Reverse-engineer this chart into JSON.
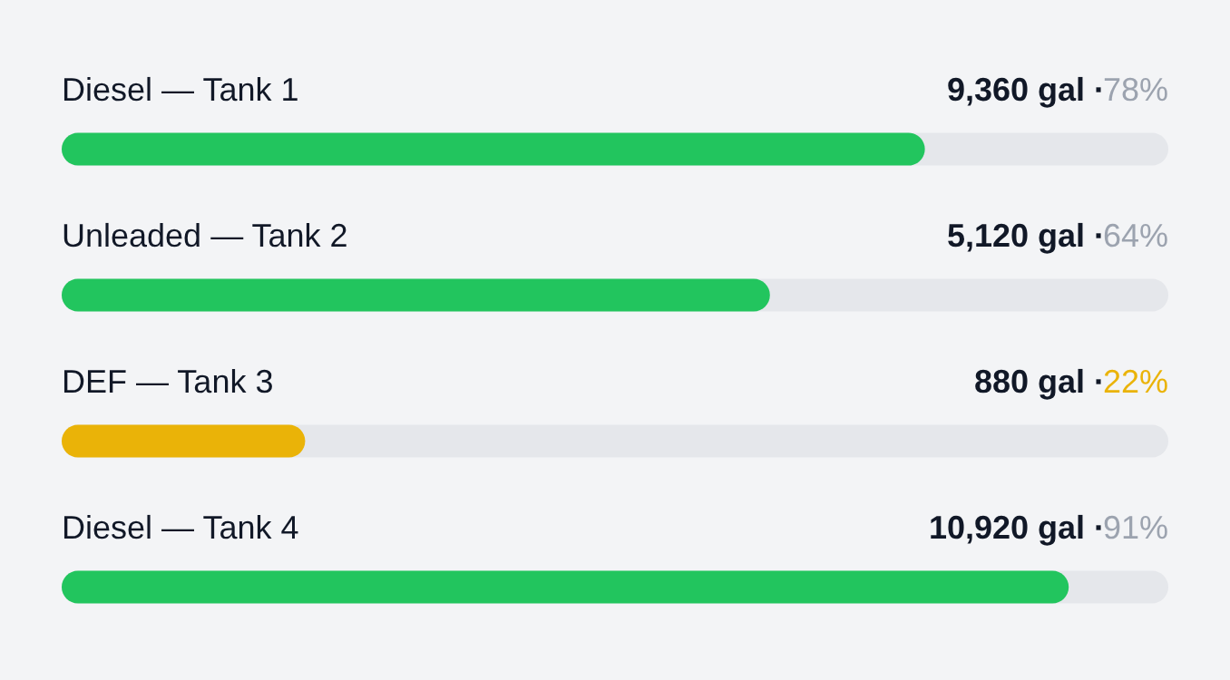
{
  "chart_data": {
    "type": "bar",
    "orientation": "horizontal",
    "categories": [
      "Diesel — Tank 1",
      "Unleaded — Tank 2",
      "DEF — Tank 3",
      "Diesel — Tank 4"
    ],
    "values": [
      78,
      64,
      22,
      91
    ],
    "colors": [
      "#22c55e",
      "#22c55e",
      "#eab308",
      "#22c55e"
    ],
    "value_labels": [
      "78%",
      "64%",
      "22%",
      "91%"
    ],
    "annotations": [
      "9,360 gal ·",
      "5,120 gal ·",
      "880 gal ·",
      "10,920 gal ·"
    ],
    "xlim": [
      0,
      100
    ]
  }
}
